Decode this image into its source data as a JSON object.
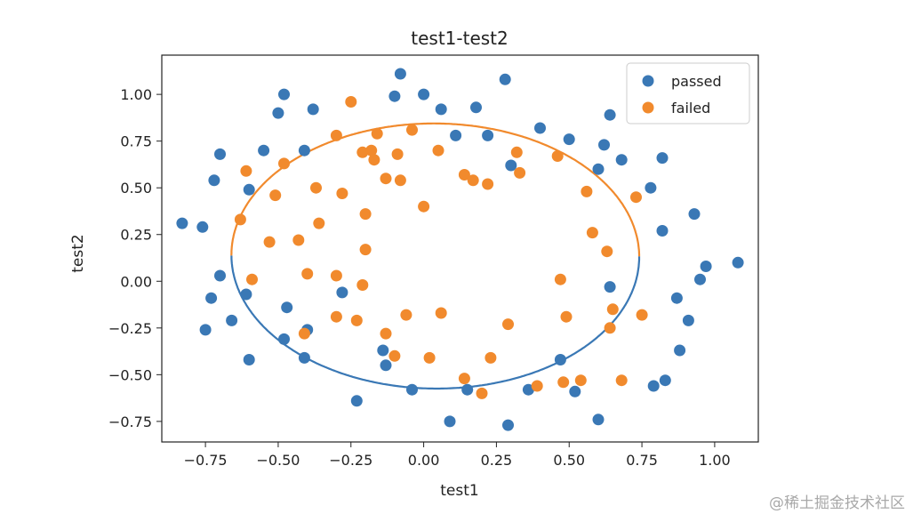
{
  "chart_data": {
    "type": "scatter",
    "title": "test1-test2",
    "xlabel": "test1",
    "ylabel": "test2",
    "xlim": [
      -0.9,
      1.15
    ],
    "ylim": [
      -0.86,
      1.21
    ],
    "xticks": [
      -0.75,
      -0.5,
      -0.25,
      0.0,
      0.25,
      0.5,
      0.75,
      1.0
    ],
    "xtick_labels": [
      "−0.75",
      "−0.50",
      "−0.25",
      "0.00",
      "0.25",
      "0.50",
      "0.75",
      "1.00"
    ],
    "yticks": [
      -0.75,
      -0.5,
      -0.25,
      0.0,
      0.25,
      0.5,
      0.75,
      1.0
    ],
    "ytick_labels": [
      "−0.75",
      "−0.50",
      "−0.25",
      "0.00",
      "0.25",
      "0.50",
      "0.75",
      "1.00"
    ],
    "legend_position": "top-right",
    "grid": false,
    "series": [
      {
        "name": "passed",
        "color": "#3a78b5",
        "points": [
          [
            -0.83,
            0.31
          ],
          [
            -0.76,
            0.29
          ],
          [
            -0.75,
            -0.26
          ],
          [
            -0.72,
            0.54
          ],
          [
            -0.7,
            0.68
          ],
          [
            -0.7,
            0.03
          ],
          [
            -0.73,
            -0.09
          ],
          [
            -0.66,
            -0.21
          ],
          [
            -0.6,
            0.49
          ],
          [
            -0.61,
            -0.07
          ],
          [
            -0.6,
            -0.42
          ],
          [
            -0.55,
            0.7
          ],
          [
            -0.5,
            0.9
          ],
          [
            -0.48,
            1.0
          ],
          [
            -0.47,
            -0.14
          ],
          [
            -0.48,
            -0.31
          ],
          [
            -0.41,
            0.7
          ],
          [
            -0.38,
            0.92
          ],
          [
            -0.4,
            -0.26
          ],
          [
            -0.41,
            -0.41
          ],
          [
            -0.28,
            -0.06
          ],
          [
            -0.23,
            -0.64
          ],
          [
            -0.14,
            -0.37
          ],
          [
            -0.13,
            -0.45
          ],
          [
            -0.1,
            0.99
          ],
          [
            -0.08,
            1.11
          ],
          [
            -0.04,
            -0.58
          ],
          [
            0.0,
            1.0
          ],
          [
            0.06,
            0.92
          ],
          [
            0.11,
            0.78
          ],
          [
            0.09,
            -0.75
          ],
          [
            0.15,
            -0.58
          ],
          [
            0.18,
            0.93
          ],
          [
            0.22,
            0.78
          ],
          [
            0.28,
            1.08
          ],
          [
            0.3,
            0.62
          ],
          [
            0.29,
            -0.77
          ],
          [
            0.36,
            -0.58
          ],
          [
            0.4,
            0.82
          ],
          [
            0.47,
            -0.42
          ],
          [
            0.5,
            0.76
          ],
          [
            0.52,
            -0.59
          ],
          [
            0.6,
            0.6
          ],
          [
            0.6,
            -0.74
          ],
          [
            0.62,
            0.73
          ],
          [
            0.64,
            0.89
          ],
          [
            0.64,
            -0.03
          ],
          [
            0.68,
            0.65
          ],
          [
            0.78,
            0.5
          ],
          [
            0.79,
            -0.56
          ],
          [
            0.82,
            0.66
          ],
          [
            0.82,
            0.27
          ],
          [
            0.83,
            -0.53
          ],
          [
            0.87,
            -0.09
          ],
          [
            0.88,
            -0.37
          ],
          [
            0.91,
            -0.21
          ],
          [
            0.93,
            0.36
          ],
          [
            0.95,
            0.01
          ],
          [
            0.97,
            0.08
          ],
          [
            1.08,
            0.1
          ]
        ]
      },
      {
        "name": "failed",
        "color": "#f18a2d",
        "points": [
          [
            -0.63,
            0.33
          ],
          [
            -0.61,
            0.59
          ],
          [
            -0.59,
            0.01
          ],
          [
            -0.53,
            0.21
          ],
          [
            -0.51,
            0.46
          ],
          [
            -0.48,
            0.63
          ],
          [
            -0.43,
            0.22
          ],
          [
            -0.41,
            -0.28
          ],
          [
            -0.4,
            0.04
          ],
          [
            -0.37,
            0.5
          ],
          [
            -0.36,
            0.31
          ],
          [
            -0.3,
            0.78
          ],
          [
            -0.3,
            0.03
          ],
          [
            -0.3,
            -0.19
          ],
          [
            -0.28,
            0.47
          ],
          [
            -0.25,
            0.96
          ],
          [
            -0.23,
            -0.21
          ],
          [
            -0.21,
            -0.02
          ],
          [
            -0.21,
            0.69
          ],
          [
            -0.2,
            0.36
          ],
          [
            -0.2,
            0.17
          ],
          [
            -0.18,
            0.7
          ],
          [
            -0.17,
            0.65
          ],
          [
            -0.16,
            0.79
          ],
          [
            -0.13,
            0.55
          ],
          [
            -0.13,
            -0.28
          ],
          [
            -0.1,
            -0.4
          ],
          [
            -0.09,
            0.68
          ],
          [
            -0.08,
            0.54
          ],
          [
            -0.06,
            -0.18
          ],
          [
            -0.04,
            0.81
          ],
          [
            0.0,
            0.4
          ],
          [
            0.02,
            -0.41
          ],
          [
            0.05,
            0.7
          ],
          [
            0.06,
            -0.17
          ],
          [
            0.14,
            0.57
          ],
          [
            0.14,
            -0.52
          ],
          [
            0.17,
            0.54
          ],
          [
            0.2,
            -0.6
          ],
          [
            0.22,
            0.52
          ],
          [
            0.23,
            -0.41
          ],
          [
            0.29,
            -0.23
          ],
          [
            0.32,
            0.69
          ],
          [
            0.33,
            0.58
          ],
          [
            0.39,
            -0.56
          ],
          [
            0.46,
            0.67
          ],
          [
            0.47,
            0.01
          ],
          [
            0.48,
            -0.54
          ],
          [
            0.49,
            -0.19
          ],
          [
            0.54,
            -0.53
          ],
          [
            0.56,
            0.48
          ],
          [
            0.58,
            0.26
          ],
          [
            0.63,
            0.16
          ],
          [
            0.64,
            -0.25
          ],
          [
            0.65,
            -0.15
          ],
          [
            0.68,
            -0.53
          ],
          [
            0.73,
            0.45
          ],
          [
            0.75,
            -0.18
          ]
        ]
      }
    ],
    "decision_boundary": {
      "type": "ellipse",
      "center": [
        0.04,
        0.135
      ],
      "semi_axes": [
        0.7,
        0.71
      ],
      "rotation_deg": 15,
      "colors": {
        "upper": "#f18a2d",
        "lower": "#3a78b5"
      }
    }
  },
  "watermark": "@稀土掘金技术社区"
}
